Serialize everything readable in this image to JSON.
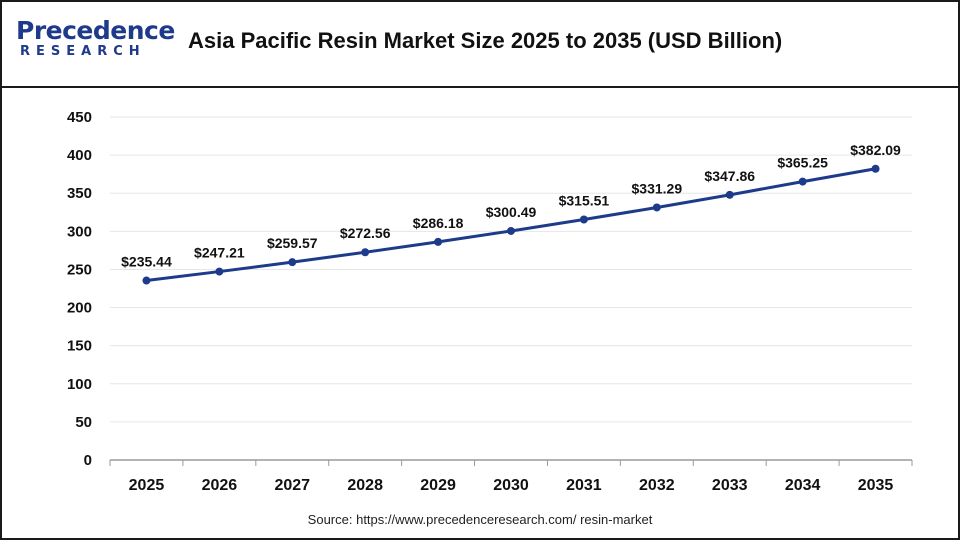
{
  "logo": {
    "top": "Precedence",
    "bottom": "RESEARCH"
  },
  "header": {
    "title": "Asia Pacific Resin Market Size 2025 to 2035 (USD Billion)"
  },
  "source": "Source: https://www.precedenceresearch.com/ resin-market",
  "colors": {
    "line": "#1e3a8a",
    "grid": "#e6e6e6",
    "text": "#111111"
  },
  "chart_data": {
    "type": "line",
    "title": "Asia Pacific Resin Market Size 2025 to 2035 (USD Billion)",
    "xlabel": "",
    "ylabel": "",
    "categories": [
      "2025",
      "2026",
      "2027",
      "2028",
      "2029",
      "2030",
      "2031",
      "2032",
      "2033",
      "2034",
      "2035"
    ],
    "series": [
      {
        "values": [
          235.44,
          247.21,
          259.57,
          272.56,
          286.18,
          300.49,
          315.51,
          331.29,
          347.86,
          365.25,
          382.09
        ],
        "labels": [
          "$235.44",
          "$247.21",
          "$259.57",
          "$272.56",
          "$286.18",
          "$300.49",
          "$315.51",
          "$331.29",
          "$347.86",
          "$365.25",
          "$382.09"
        ]
      }
    ],
    "ylim": [
      0,
      450
    ],
    "yticks": [
      0,
      50,
      100,
      150,
      200,
      250,
      300,
      350,
      400,
      450
    ],
    "grid": true,
    "legend": "none"
  }
}
